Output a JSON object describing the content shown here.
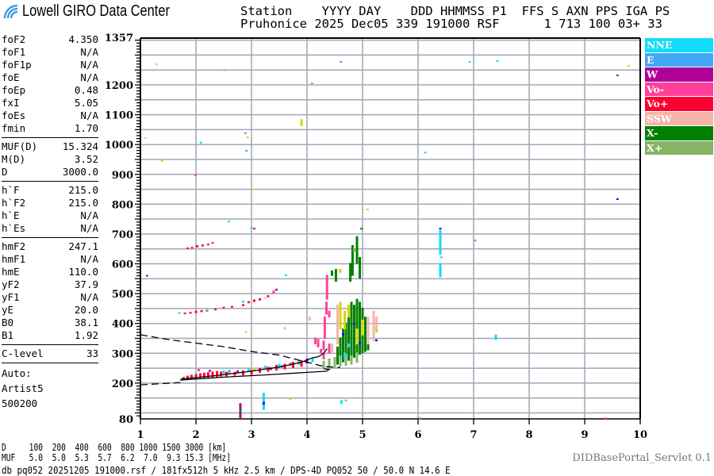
{
  "header": {
    "logo_text": "Lowell GIRO Data Center",
    "line1": "Station    YYYY DAY    DDD HHMMSS P1  FFS S AXN PPS IGA PS",
    "line2": "Pruhonice 2025 Dec05 339 191000 RSF      1 713 100 03+ 33"
  },
  "params": {
    "group1": [
      [
        "foF2",
        "4.350"
      ],
      [
        "foF1",
        "N/A"
      ],
      [
        "foF1p",
        "N/A"
      ],
      [
        "foE",
        "N/A"
      ],
      [
        "foEp",
        "0.48"
      ],
      [
        "fxI",
        "5.05"
      ],
      [
        "foEs",
        "N/A"
      ],
      [
        "fmin",
        "1.70"
      ]
    ],
    "group2": [
      [
        "MUF(D)",
        "15.324"
      ],
      [
        "M(D)",
        "3.52"
      ],
      [
        "D",
        "3000.0"
      ]
    ],
    "group3": [
      [
        "h`F",
        "215.0"
      ],
      [
        "h`F2",
        "215.0"
      ],
      [
        "h`E",
        "N/A"
      ],
      [
        "h`Es",
        "N/A"
      ]
    ],
    "group4": [
      [
        "hmF2",
        "247.1"
      ],
      [
        "hmF1",
        "N/A"
      ],
      [
        "hmE",
        "110.0"
      ],
      [
        "yF2",
        "37.9"
      ],
      [
        "yF1",
        "N/A"
      ],
      [
        "yE",
        "20.0"
      ],
      [
        "B0",
        "38.1"
      ],
      [
        "B1",
        "1.92"
      ]
    ],
    "group5": [
      [
        "C-level",
        "33"
      ]
    ],
    "auto": [
      "Auto:",
      "Artist5",
      "500200"
    ]
  },
  "legend": [
    {
      "label": "NNE",
      "color": "#12dcfa"
    },
    {
      "label": "E",
      "color": "#40a8f4"
    },
    {
      "label": "W",
      "color": "#b0009a"
    },
    {
      "label": "Vo-",
      "color": "#ff4098"
    },
    {
      "label": "Vo+",
      "color": "#ff0033"
    },
    {
      "label": "SSW",
      "color": "#f5b5a8"
    },
    {
      "label": "X-",
      "color": "#008000"
    },
    {
      "label": "X+",
      "color": "#84b464"
    }
  ],
  "extra_colors": {
    "Y": "#d4d400",
    "B": "#2000ff"
  },
  "bottom": {
    "d_row": "D     100  200  400  600  800 1000 1500 3000 [km]",
    "muf_row": "MUF   5.0  5.0  5.3  5.7  6.2  7.0  9.3 15.3 [MHz]",
    "db_line": "db pq052 20251205 191000.rsf / 181fx512h 5 kHz 2.5 km / DPS-4D PQ052 50 / 50.0 N 14.6 E",
    "servlet": "DIDBasePortal_Servlet 0.1"
  },
  "chart_data": {
    "type": "scatter",
    "xlabel": "",
    "ylabel": "",
    "xlim": [
      1,
      10
    ],
    "ylim": [
      80,
      1357
    ],
    "x_ticks": [
      "1",
      "2",
      "3",
      "4",
      "5",
      "6",
      "7",
      "8",
      "9",
      "10"
    ],
    "y_ticks": [
      "1357",
      "1200",
      "1100",
      "1000",
      "900",
      "800",
      "700",
      "600",
      "500",
      "400",
      "300",
      "200",
      "80"
    ],
    "grid": true,
    "legend_position": "right",
    "echoes_format": "[frequency MHz, height_low km, height_high km, polarization]",
    "echoes": [
      [
        1.78,
        214,
        218,
        "Vo+"
      ],
      [
        1.85,
        214,
        222,
        "Vo+"
      ],
      [
        1.92,
        215,
        225,
        "Vo+"
      ],
      [
        2.0,
        216,
        228,
        "Vo+"
      ],
      [
        2.08,
        217,
        230,
        "Vo+"
      ],
      [
        2.15,
        218,
        232,
        "Vo+"
      ],
      [
        2.22,
        218,
        234,
        "Vo+"
      ],
      [
        2.3,
        219,
        236,
        "Vo+"
      ],
      [
        2.38,
        220,
        238,
        "Vo+"
      ],
      [
        2.45,
        222,
        236,
        "Vo+"
      ],
      [
        2.55,
        223,
        235,
        "Vo+"
      ],
      [
        2.7,
        225,
        235,
        "Vo+"
      ],
      [
        2.85,
        226,
        240,
        "Vo+"
      ],
      [
        3.0,
        228,
        242,
        "Vo+"
      ],
      [
        3.15,
        234,
        248,
        "Vo+"
      ],
      [
        3.3,
        238,
        252,
        "Vo+"
      ],
      [
        3.45,
        242,
        258,
        "Vo+"
      ],
      [
        3.6,
        246,
        262,
        "Vo+"
      ],
      [
        3.75,
        250,
        268,
        "Vo+"
      ],
      [
        3.9,
        255,
        274,
        "Vo+"
      ],
      [
        2.05,
        240,
        245,
        "Vo-"
      ],
      [
        2.25,
        238,
        242,
        "W"
      ],
      [
        2.5,
        230,
        240,
        "NNE"
      ],
      [
        2.6,
        232,
        242,
        "E"
      ],
      [
        2.75,
        236,
        240,
        "W"
      ],
      [
        2.95,
        238,
        248,
        "NNE"
      ],
      [
        3.05,
        240,
        250,
        "Y"
      ],
      [
        3.25,
        246,
        256,
        "NNE"
      ],
      [
        3.35,
        244,
        250,
        "W"
      ],
      [
        3.5,
        250,
        262,
        "NNE"
      ],
      [
        3.55,
        252,
        258,
        "E"
      ],
      [
        3.7,
        258,
        266,
        "Vo-"
      ],
      [
        3.85,
        262,
        272,
        "NNE"
      ],
      [
        4.0,
        266,
        280,
        "W"
      ],
      [
        4.1,
        270,
        282,
        "NNE"
      ],
      [
        1.8,
        431,
        434,
        "Vo+"
      ],
      [
        1.9,
        433,
        436,
        "Vo+"
      ],
      [
        2.0,
        435,
        440,
        "Vo+"
      ],
      [
        2.1,
        438,
        442,
        "Vo+"
      ],
      [
        2.2,
        440,
        444,
        "Vo+"
      ],
      [
        2.35,
        444,
        448,
        "Vo+"
      ],
      [
        2.5,
        450,
        453,
        "Vo+"
      ],
      [
        2.65,
        453,
        456,
        "Vo+"
      ],
      [
        2.85,
        458,
        462,
        "Vo+"
      ],
      [
        2.95,
        468,
        472,
        "Vo+"
      ],
      [
        3.05,
        472,
        478,
        "Vo+"
      ],
      [
        3.15,
        477,
        482,
        "Vo+"
      ],
      [
        3.3,
        488,
        492,
        "Vo+"
      ],
      [
        3.4,
        500,
        508,
        "Vo-"
      ],
      [
        3.45,
        510,
        514,
        "W"
      ],
      [
        1.7,
        433,
        435,
        "NNE"
      ],
      [
        2.85,
        470,
        474,
        "NNE"
      ],
      [
        3.25,
        484,
        486,
        "SSW"
      ],
      [
        1.85,
        650,
        652,
        "Vo+"
      ],
      [
        1.93,
        652,
        654,
        "Vo+"
      ],
      [
        2.02,
        655,
        660,
        "Vo+"
      ],
      [
        2.12,
        658,
        662,
        "Vo+"
      ],
      [
        2.22,
        662,
        665,
        "Vo+"
      ],
      [
        2.3,
        668,
        670,
        "Vo+"
      ],
      [
        4.3,
        280,
        300,
        "Vo-"
      ],
      [
        4.3,
        310,
        340,
        "Vo-"
      ],
      [
        4.32,
        350,
        420,
        "Vo-"
      ],
      [
        4.35,
        430,
        470,
        "Vo-"
      ],
      [
        4.36,
        480,
        560,
        "Vo-"
      ],
      [
        4.25,
        300,
        312,
        "Vo-"
      ],
      [
        4.2,
        320,
        345,
        "Vo-"
      ],
      [
        4.15,
        330,
        350,
        "Vo-"
      ],
      [
        4.4,
        300,
        330,
        "Vo-"
      ],
      [
        4.4,
        420,
        440,
        "Vo-"
      ],
      [
        4.55,
        262,
        320,
        "X-"
      ],
      [
        4.6,
        265,
        350,
        "X-"
      ],
      [
        4.65,
        270,
        380,
        "X-"
      ],
      [
        4.7,
        272,
        400,
        "X-"
      ],
      [
        4.75,
        275,
        440,
        "X-"
      ],
      [
        4.8,
        280,
        470,
        "X-"
      ],
      [
        4.85,
        285,
        460,
        "X-"
      ],
      [
        4.9,
        290,
        480,
        "X-"
      ],
      [
        4.95,
        295,
        470,
        "X-"
      ],
      [
        5.0,
        300,
        450,
        "X-"
      ],
      [
        5.05,
        305,
        420,
        "X-"
      ],
      [
        5.1,
        310,
        400,
        "X-"
      ],
      [
        4.78,
        540,
        600,
        "X-"
      ],
      [
        4.82,
        560,
        660,
        "X-"
      ],
      [
        4.9,
        600,
        690,
        "X-"
      ],
      [
        4.95,
        550,
        620,
        "X-"
      ],
      [
        4.52,
        540,
        580,
        "X-"
      ],
      [
        4.45,
        560,
        575,
        "X-"
      ],
      [
        4.98,
        715,
        718,
        "X-"
      ],
      [
        4.3,
        248,
        272,
        "X+"
      ],
      [
        4.4,
        250,
        280,
        "X+"
      ],
      [
        4.5,
        252,
        285,
        "X+"
      ],
      [
        4.6,
        256,
        290,
        "X+"
      ],
      [
        4.7,
        258,
        295,
        "X+"
      ],
      [
        4.8,
        262,
        290,
        "X+"
      ],
      [
        4.9,
        268,
        300,
        "X+"
      ],
      [
        4.85,
        640,
        650,
        "X+"
      ],
      [
        4.6,
        380,
        470,
        "Y"
      ],
      [
        4.68,
        380,
        440,
        "Y"
      ],
      [
        4.75,
        420,
        460,
        "Y"
      ],
      [
        4.9,
        330,
        380,
        "Y"
      ],
      [
        5.0,
        360,
        410,
        "Y"
      ],
      [
        5.25,
        370,
        420,
        "Y"
      ],
      [
        3.9,
        1062,
        1082,
        "Y"
      ],
      [
        4.6,
        570,
        580,
        "Y"
      ],
      [
        2.9,
        370,
        372,
        "Y"
      ],
      [
        5.1,
        330,
        420,
        "SSW"
      ],
      [
        5.2,
        340,
        440,
        "SSW"
      ],
      [
        5.25,
        380,
        420,
        "SSW"
      ],
      [
        4.55,
        330,
        460,
        "SSW"
      ],
      [
        4.05,
        410,
        420,
        "SSW"
      ],
      [
        3.6,
        380,
        385,
        "SSW"
      ],
      [
        4.45,
        300,
        330,
        "SSW"
      ],
      [
        6.4,
        555,
        600,
        "NNE"
      ],
      [
        6.4,
        630,
        710,
        "NNE"
      ],
      [
        6.42,
        620,
        622,
        "NNE"
      ],
      [
        7.4,
        345,
        360,
        "NNE"
      ],
      [
        4.62,
        130,
        140,
        "NNE"
      ],
      [
        4.68,
        280,
        300,
        "NNE"
      ],
      [
        4.75,
        320,
        330,
        "NNE"
      ],
      [
        3.62,
        560,
        562,
        "NNE"
      ],
      [
        6.4,
        715,
        718,
        "B"
      ],
      [
        4.65,
        360,
        364,
        "B"
      ],
      [
        4.95,
        330,
        334,
        "B"
      ],
      [
        5.25,
        340,
        344,
        "B"
      ],
      [
        4.85,
        395,
        398,
        "B"
      ],
      [
        2.8,
        80,
        130,
        "W"
      ],
      [
        2.8,
        100,
        110,
        "X-"
      ],
      [
        3.22,
        110,
        165,
        "NNE"
      ],
      [
        3.22,
        128,
        134,
        "B"
      ],
      [
        4.7,
        140,
        142,
        "X+"
      ],
      [
        3.7,
        145,
        147,
        "Y"
      ],
      [
        1.29,
        1269,
        1269,
        "SSW"
      ],
      [
        2.51,
        1250,
        1250,
        "NNE"
      ],
      [
        4.09,
        1205,
        1205,
        "X+"
      ],
      [
        4.61,
        1277,
        1277,
        "E"
      ],
      [
        1.09,
        1022,
        1022,
        "SSW"
      ],
      [
        2.09,
        1006,
        1006,
        "NNE"
      ],
      [
        2.89,
        1038,
        1038,
        "E"
      ],
      [
        2.93,
        1024,
        1024,
        "Y"
      ],
      [
        2.91,
        979,
        979,
        "E"
      ],
      [
        1.39,
        945,
        945,
        "Y"
      ],
      [
        1.99,
        897,
        897,
        "Vo-"
      ],
      [
        3.03,
        849,
        849,
        "Y"
      ],
      [
        5.09,
        782,
        782,
        "Y"
      ],
      [
        2.59,
        742,
        742,
        "NNE"
      ],
      [
        6.93,
        1277,
        1277,
        "NNE"
      ],
      [
        7.43,
        1280,
        1280,
        "NNE"
      ],
      [
        9.79,
        1261,
        1263,
        "Y"
      ],
      [
        9.59,
        1232,
        1232,
        "X-"
      ],
      [
        6.13,
        973,
        973,
        "NNE"
      ],
      [
        9.59,
        817,
        817,
        "B"
      ],
      [
        7.03,
        678,
        678,
        "E"
      ],
      [
        9.37,
        80,
        82,
        "Vo-"
      ],
      [
        6.03,
        82,
        82,
        "E"
      ],
      [
        1.12,
        560,
        560,
        "W"
      ],
      [
        3.0,
        720,
        720,
        "NNE"
      ],
      [
        3.05,
        718,
        718,
        "Vo+"
      ],
      [
        2.2,
        445,
        445,
        "NNE"
      ]
    ],
    "profile_solid_lower": [
      [
        1.72,
        210
      ],
      [
        2.5,
        220
      ],
      [
        3.3,
        228
      ],
      [
        4.0,
        236
      ],
      [
        4.35,
        240
      ],
      [
        4.4,
        246
      ],
      [
        4.3,
        248
      ]
    ],
    "profile_solid_upper": [
      [
        1.72,
        213
      ],
      [
        2.4,
        226
      ],
      [
        3.0,
        240
      ],
      [
        3.5,
        254
      ],
      [
        3.9,
        270
      ],
      [
        4.1,
        285
      ],
      [
        4.2,
        288
      ],
      [
        4.3,
        300
      ],
      [
        4.36,
        315
      ]
    ],
    "profile_dashed_lower": [
      [
        1.0,
        194
      ],
      [
        1.72,
        202
      ]
    ],
    "profile_dashed_upper": [
      [
        1.0,
        362
      ],
      [
        1.5,
        346
      ],
      [
        2.0,
        334
      ],
      [
        2.5,
        322
      ],
      [
        3.0,
        306
      ],
      [
        3.5,
        294
      ],
      [
        4.0,
        270
      ],
      [
        4.3,
        256
      ],
      [
        4.6,
        252
      ]
    ]
  }
}
